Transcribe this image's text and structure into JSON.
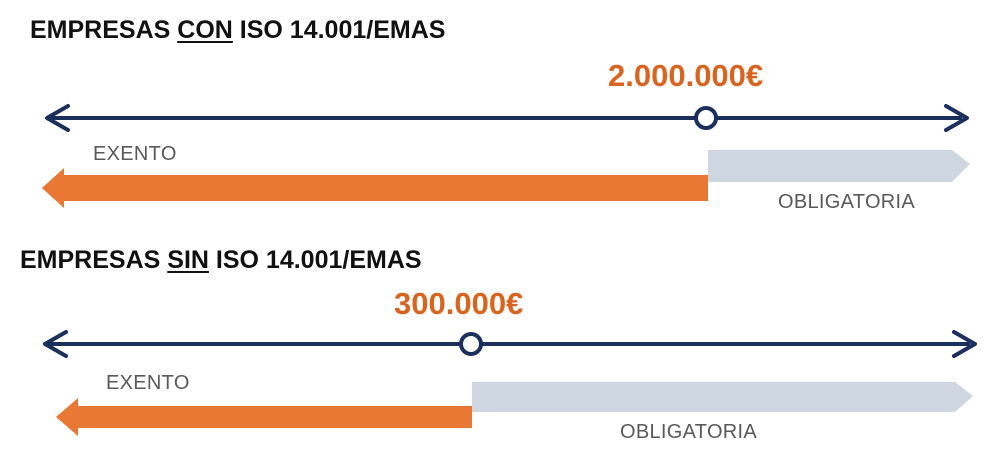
{
  "colors": {
    "axis": "#1b2f5c",
    "exempt": "#e87834",
    "mandatory": "#ced6e2",
    "amount": "#d9641f",
    "heading": "#111111",
    "label": "#595959"
  },
  "sections": [
    {
      "heading_prefix": "EMPRESAS ",
      "heading_emphasis": "CON",
      "heading_suffix": " ISO 14.001/EMAS",
      "threshold_label": "2.000.000€",
      "exempt_label": "EXENTO",
      "mandatory_label": "OBLIGATORIA",
      "threshold_fraction": 0.714
    },
    {
      "heading_prefix": "EMPRESAS ",
      "heading_emphasis": "SIN",
      "heading_suffix": " ISO 14.001/EMAS",
      "threshold_label": "300.000€",
      "exempt_label": "EXENTO",
      "mandatory_label": "OBLIGATORIA",
      "threshold_fraction": 0.457
    }
  ]
}
